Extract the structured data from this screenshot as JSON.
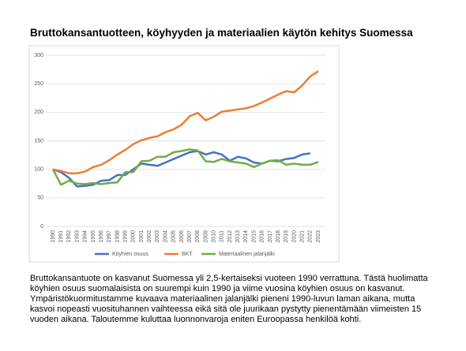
{
  "chart_data": {
    "type": "line",
    "title": "Bruttokansantuotteen, köyhyyden ja materiaalien käytön kehitys Suomessa",
    "categories": [
      "1990",
      "1991",
      "1992",
      "1993",
      "1994",
      "1995",
      "1996",
      "1997",
      "1998",
      "1999",
      "2000",
      "2001",
      "2002",
      "2003",
      "2004",
      "2005",
      "2006",
      "2007",
      "2008",
      "2009",
      "2010",
      "2011",
      "2012",
      "2013",
      "2014",
      "2015",
      "2016",
      "2017",
      "2018",
      "2019",
      "2020",
      "2021",
      "2022",
      "2023"
    ],
    "series": [
      {
        "name": "Köyhien osuus",
        "color": "#4472c4",
        "values": [
          100,
          95,
          85,
          70,
          71,
          73,
          80,
          81,
          90,
          90,
          100,
          110,
          108,
          106,
          112,
          118,
          124,
          130,
          132,
          126,
          130,
          126,
          115,
          122,
          119,
          112,
          110,
          115,
          114,
          118,
          120,
          126,
          128,
          null
        ]
      },
      {
        "name": "BKT",
        "color": "#ed7d31",
        "values": [
          100,
          97,
          93,
          93,
          96,
          104,
          108,
          116,
          126,
          134,
          144,
          151,
          155,
          158,
          165,
          170,
          178,
          193,
          199,
          186,
          192,
          201,
          203,
          205,
          207,
          211,
          217,
          224,
          231,
          237,
          235,
          247,
          263,
          272
        ]
      },
      {
        "name": "Materiaalinen jalanjälki",
        "color": "#70ad47",
        "values": [
          100,
          73,
          80,
          75,
          74,
          76,
          74,
          76,
          77,
          95,
          95,
          114,
          115,
          122,
          122,
          130,
          132,
          135,
          133,
          114,
          113,
          118,
          114,
          112,
          110,
          104,
          110,
          115,
          116,
          108,
          110,
          108,
          108,
          113
        ]
      }
    ],
    "ylim": [
      0,
      300
    ],
    "yticks": [
      0,
      50,
      100,
      150,
      200,
      250,
      300
    ],
    "grid": true,
    "legend": "bottom"
  },
  "text": "Bruttokansantuote on kasvanut Suomessa yli 2,5-kertaiseksi vuoteen 1990 verrattuna. Tästä huolimatta köyhien osuus suomalaisista on suurempi kuin 1990 ja viime vuosina köyhien osuus on kasvanut. Ympäristökuormitustamme kuvaava materiaalinen jalanjälki pieneni 1990-luvun laman aikana, mutta kasvoi nopeasti vuosituhannen vaihteessa eikä sitä ole juurikaan pystytty pienentämään viimeisten 15 vuoden aikana. Taloutemme kuluttaa luonnonvaroja eniten Euroopassa henkilöä kohti."
}
